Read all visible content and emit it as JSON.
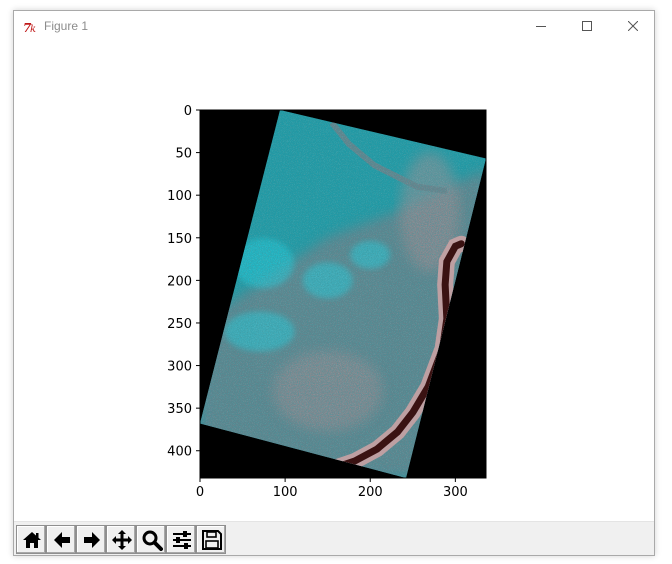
{
  "window": {
    "title": "Figure 1",
    "app_icon": "tk-feather-icon",
    "controls": [
      {
        "name": "minimize-button",
        "icon": "minimize-icon"
      },
      {
        "name": "maximize-button",
        "icon": "maximize-icon"
      },
      {
        "name": "close-button",
        "icon": "close-icon"
      }
    ]
  },
  "toolbar": {
    "buttons": [
      {
        "name": "home-button",
        "icon": "home-icon"
      },
      {
        "name": "back-button",
        "icon": "arrow-left-icon"
      },
      {
        "name": "forward-button",
        "icon": "arrow-right-icon"
      },
      {
        "name": "pan-button",
        "icon": "move-icon"
      },
      {
        "name": "zoom-button",
        "icon": "magnifier-icon"
      },
      {
        "name": "configure-subplots-button",
        "icon": "sliders-icon"
      },
      {
        "name": "save-button",
        "icon": "floppy-disk-icon"
      }
    ]
  },
  "chart_data": {
    "type": "image",
    "title": "",
    "xlabel": "",
    "ylabel": "",
    "xlim": [
      0,
      336
    ],
    "ylim": [
      432,
      0
    ],
    "xticks": [
      0,
      100,
      200,
      300
    ],
    "yticks": [
      0,
      50,
      100,
      150,
      200,
      250,
      300,
      350,
      400
    ],
    "grid": false,
    "legend": "none",
    "image": {
      "background": "#000000",
      "footprint_corners": [
        [
          94,
          0
        ],
        [
          336,
          57
        ],
        [
          242,
          432
        ],
        [
          0,
          368
        ]
      ],
      "river_path": [
        [
          307,
          157
        ],
        [
          300,
          160
        ],
        [
          290,
          178
        ],
        [
          288,
          205
        ],
        [
          290,
          245
        ],
        [
          285,
          280
        ],
        [
          268,
          325
        ],
        [
          250,
          355
        ],
        [
          232,
          378
        ],
        [
          208,
          398
        ],
        [
          182,
          412
        ],
        [
          158,
          420
        ]
      ],
      "colors": {
        "vegetation": "#1e9aa6",
        "bright_vegetation": "#20d0e0",
        "urban": "#6e7f88",
        "urban_pink": "#b48c90",
        "river": "#3a1212",
        "river_bank": "#c9a2a4"
      }
    }
  }
}
